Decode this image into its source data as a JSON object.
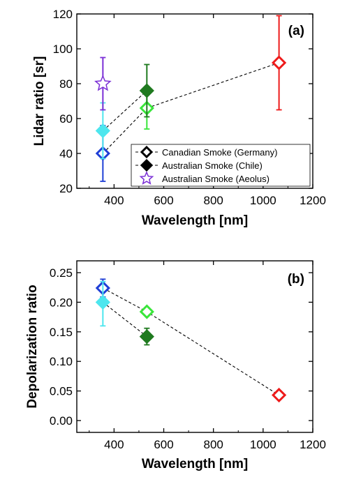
{
  "chart_data": [
    {
      "type": "scatter",
      "panel_label": "(a)",
      "xlabel": "Wavelength [nm]",
      "ylabel": "Lidar ratio [sr]",
      "xlim": [
        250,
        1200
      ],
      "ylim": [
        20,
        120
      ],
      "xticks": [
        400,
        600,
        800,
        1000,
        1200
      ],
      "yticks": [
        20,
        40,
        60,
        80,
        100,
        120
      ],
      "xtick_labels": [
        "400",
        "600",
        "800",
        "1000",
        "1200"
      ],
      "ytick_labels": [
        "20",
        "40",
        "60",
        "80",
        "100",
        "120"
      ],
      "grid": false,
      "legend_position": "bottom-right",
      "legend": [
        {
          "label": "Canadian Smoke (Germany)",
          "marker": "open-diamond",
          "line": "dashed"
        },
        {
          "label": "Australian Smoke (Chile)",
          "marker": "filled-diamond",
          "line": "dashed"
        },
        {
          "label": "Australian Smoke (Aeolus)",
          "marker": "open-star",
          "line": "none"
        }
      ],
      "series": [
        {
          "name": "Canadian Smoke (Germany)",
          "marker": "open-diamond",
          "line": "dashed",
          "points": [
            {
              "x": 355,
              "y": 40,
              "err_low": 24,
              "err_high": 56,
              "color": "#1f3fd6"
            },
            {
              "x": 532,
              "y": 66,
              "err_low": 54,
              "err_high": 78,
              "color": "#39e63a"
            },
            {
              "x": 1064,
              "y": 92,
              "err_low": 65,
              "err_high": 119,
              "color": "#ee1a1a"
            }
          ]
        },
        {
          "name": "Australian Smoke (Chile)",
          "marker": "filled-diamond",
          "line": "dashed",
          "points": [
            {
              "x": 355,
              "y": 53,
              "err_low": 37,
              "err_high": 69,
              "color": "#4de6ee"
            },
            {
              "x": 532,
              "y": 76,
              "err_low": 61,
              "err_high": 91,
              "color": "#1f7a1f"
            }
          ]
        },
        {
          "name": "Australian Smoke (Aeolus)",
          "marker": "open-star",
          "line": "none",
          "points": [
            {
              "x": 355,
              "y": 80,
              "err_low": 65,
              "err_high": 95,
              "color": "#7b2fd6"
            }
          ]
        }
      ]
    },
    {
      "type": "scatter",
      "panel_label": "(b)",
      "xlabel": "Wavelength [nm]",
      "ylabel": "Depolarization ratio",
      "xlim": [
        250,
        1200
      ],
      "ylim": [
        -0.02,
        0.27
      ],
      "xticks": [
        400,
        600,
        800,
        1000,
        1200
      ],
      "yticks": [
        0.0,
        0.05,
        0.1,
        0.15,
        0.2,
        0.25
      ],
      "xtick_labels": [
        "400",
        "600",
        "800",
        "1000",
        "1200"
      ],
      "ytick_labels": [
        "0.00",
        "0.05",
        "0.10",
        "0.15",
        "0.20",
        "0.25"
      ],
      "grid": false,
      "series": [
        {
          "name": "Canadian Smoke (Germany)",
          "marker": "open-diamond",
          "line": "dashed",
          "points": [
            {
              "x": 355,
              "y": 0.224,
              "err_low": 0.209,
              "err_high": 0.239,
              "color": "#1f3fd6"
            },
            {
              "x": 532,
              "y": 0.184,
              "err_low": null,
              "err_high": null,
              "color": "#39e63a"
            },
            {
              "x": 1064,
              "y": 0.043,
              "err_low": null,
              "err_high": null,
              "color": "#ee1a1a"
            }
          ]
        },
        {
          "name": "Australian Smoke (Chile)",
          "marker": "filled-diamond",
          "line": "dashed",
          "points": [
            {
              "x": 355,
              "y": 0.2,
              "err_low": 0.16,
              "err_high": 0.235,
              "color": "#4de6ee"
            },
            {
              "x": 532,
              "y": 0.142,
              "err_low": 0.128,
              "err_high": 0.156,
              "color": "#1f7a1f"
            }
          ]
        }
      ]
    }
  ]
}
